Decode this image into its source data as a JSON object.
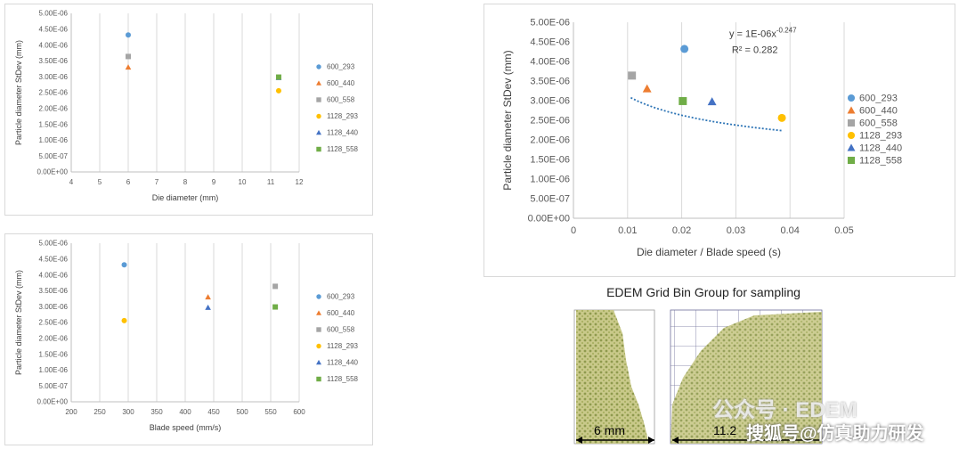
{
  "legend_series": [
    "600_293",
    "600_440",
    "600_558",
    "1128_293",
    "1128_440",
    "1128_558"
  ],
  "colors": {
    "600_293": "#5b9bd5",
    "600_440": "#ed7d31",
    "600_558": "#a5a5a5",
    "1128_293": "#ffc000",
    "1128_440": "#4472c4",
    "1128_558": "#70ad47",
    "trend": "#2e75b6"
  },
  "chart_data": [
    {
      "type": "scatter",
      "xlabel": "Die diameter (mm)",
      "ylabel": "Particle diameter StDev (mm)",
      "xlim": [
        4,
        12
      ],
      "ylim": [
        0,
        5e-06
      ],
      "xticks": [
        "4",
        "5",
        "6",
        "7",
        "8",
        "9",
        "10",
        "11",
        "12"
      ],
      "yticks": [
        "0.00E+00",
        "5.00E-07",
        "1.00E-06",
        "1.50E-06",
        "2.00E-06",
        "2.50E-06",
        "3.00E-06",
        "3.50E-06",
        "4.00E-06",
        "4.50E-06",
        "5.00E-06"
      ],
      "legend": "right",
      "grid": "vertical",
      "series": [
        {
          "name": "600_293",
          "marker": "circle",
          "points": [
            [
              6,
              4.32e-06
            ]
          ]
        },
        {
          "name": "600_440",
          "marker": "triangle",
          "points": [
            [
              6,
              3.3e-06
            ]
          ]
        },
        {
          "name": "600_558",
          "marker": "square",
          "points": [
            [
              6,
              3.64e-06
            ]
          ]
        },
        {
          "name": "1128_293",
          "marker": "circle",
          "points": [
            [
              11.28,
              2.56e-06
            ]
          ]
        },
        {
          "name": "1128_440",
          "marker": "triangle",
          "points": [
            [
              11.28,
              2.97e-06
            ]
          ]
        },
        {
          "name": "1128_558",
          "marker": "square",
          "points": [
            [
              11.28,
              2.99e-06
            ]
          ]
        }
      ]
    },
    {
      "type": "scatter",
      "xlabel": "Blade speed (mm/s)",
      "ylabel": "Particle diameter StDev (mm)",
      "xlim": [
        200,
        600
      ],
      "ylim": [
        0,
        5e-06
      ],
      "xticks": [
        "200",
        "250",
        "300",
        "350",
        "400",
        "450",
        "500",
        "550",
        "600"
      ],
      "yticks": [
        "0.00E+00",
        "5.00E-07",
        "1.00E-06",
        "1.50E-06",
        "2.00E-06",
        "2.50E-06",
        "3.00E-06",
        "3.50E-06",
        "4.00E-06",
        "4.50E-06",
        "5.00E-06"
      ],
      "legend": "right",
      "grid": "vertical",
      "series": [
        {
          "name": "600_293",
          "marker": "circle",
          "points": [
            [
              293,
              4.32e-06
            ]
          ]
        },
        {
          "name": "600_440",
          "marker": "triangle",
          "points": [
            [
              440,
              3.3e-06
            ]
          ]
        },
        {
          "name": "600_558",
          "marker": "square",
          "points": [
            [
              558,
              3.64e-06
            ]
          ]
        },
        {
          "name": "1128_293",
          "marker": "circle",
          "points": [
            [
              293,
              2.56e-06
            ]
          ]
        },
        {
          "name": "1128_440",
          "marker": "triangle",
          "points": [
            [
              440,
              2.97e-06
            ]
          ]
        },
        {
          "name": "1128_558",
          "marker": "square",
          "points": [
            [
              558,
              2.99e-06
            ]
          ]
        }
      ]
    },
    {
      "type": "scatter",
      "xlabel": "Die diameter / Blade speed (s)",
      "ylabel": "Particle diameter StDev (mm)",
      "xlim": [
        0,
        0.05
      ],
      "ylim": [
        0,
        5e-06
      ],
      "xticks": [
        "0",
        "0.01",
        "0.02",
        "0.03",
        "0.04",
        "0.05"
      ],
      "yticks": [
        "0.00E+00",
        "5.00E-07",
        "1.00E-06",
        "1.50E-06",
        "2.00E-06",
        "2.50E-06",
        "3.00E-06",
        "3.50E-06",
        "4.00E-06",
        "4.50E-06",
        "5.00E-06"
      ],
      "legend": "right",
      "grid": "vertical",
      "trendline": {
        "type": "power",
        "coef": 1e-06,
        "exponent": -0.247,
        "x_range": [
          0.0106,
          0.0385
        ]
      },
      "annotations": {
        "equation_prefix": "y = 1E-06x",
        "equation_exponent": "-0.247",
        "r2": "R² = 0.282"
      },
      "series": [
        {
          "name": "600_293",
          "marker": "circle",
          "points": [
            [
              0.0205,
              4.32e-06
            ]
          ]
        },
        {
          "name": "600_440",
          "marker": "triangle",
          "points": [
            [
              0.0136,
              3.3e-06
            ]
          ]
        },
        {
          "name": "600_558",
          "marker": "square",
          "points": [
            [
              0.0108,
              3.64e-06
            ]
          ]
        },
        {
          "name": "1128_293",
          "marker": "circle",
          "points": [
            [
              0.0385,
              2.56e-06
            ]
          ]
        },
        {
          "name": "1128_440",
          "marker": "triangle",
          "points": [
            [
              0.0256,
              2.97e-06
            ]
          ]
        },
        {
          "name": "1128_558",
          "marker": "square",
          "points": [
            [
              0.0202,
              2.99e-06
            ]
          ]
        }
      ]
    }
  ],
  "grid_bin": {
    "title": "EDEM Grid Bin Group for sampling",
    "left_label": "6 mm",
    "right_label": "11.2"
  },
  "watermark": {
    "line1": "公众号 · EDEM",
    "line2": "搜狐号@仿真助力研发"
  }
}
